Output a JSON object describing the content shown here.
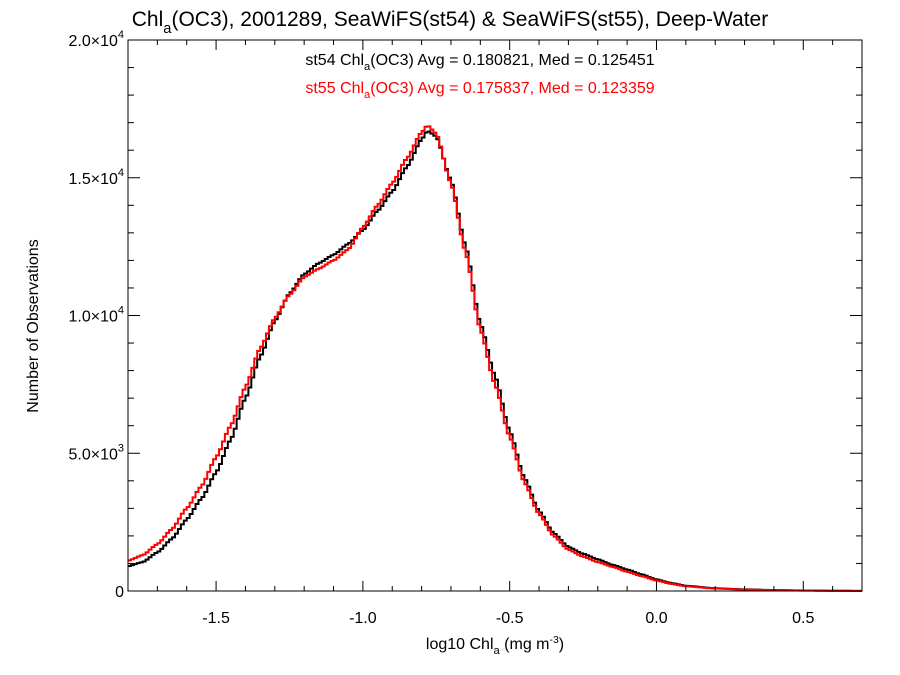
{
  "title": {
    "pre": "Chl",
    "sub": "a",
    "post": "(OC3), 2001289, SeaWiFS(st54) & SeaWiFS(st55), Deep-Water"
  },
  "annotations": [
    {
      "pre": "st54 Chl",
      "sub": "a",
      "post": "(OC3) Avg = 0.180821, Med = 0.125451",
      "color": "#000000"
    },
    {
      "pre": "st55 Chl",
      "sub": "a",
      "post": "(OC3) Avg = 0.175837, Med = 0.123359",
      "color": "#ff0000"
    }
  ],
  "xlabel": {
    "pre": "log10 Chl",
    "sub": "a",
    "mid": " (mg m",
    "sup": "-3",
    "post": ")"
  },
  "ylabel": "Number of Observations",
  "chart_data": {
    "type": "line",
    "step": true,
    "xlim": [
      -1.8,
      0.7
    ],
    "ylim": [
      0,
      20000
    ],
    "xticks": [
      {
        "value": -1.5,
        "label": "-1.5"
      },
      {
        "value": -1.0,
        "label": "-1.0"
      },
      {
        "value": -0.5,
        "label": "-0.5"
      },
      {
        "value": 0.0,
        "label": "0.0"
      },
      {
        "value": 0.5,
        "label": "0.5"
      }
    ],
    "yticks": [
      {
        "value": 0,
        "mant": "0",
        "exp": ""
      },
      {
        "value": 5000,
        "mant": "5.0×10",
        "exp": "3"
      },
      {
        "value": 10000,
        "mant": "1.0×10",
        "exp": "4"
      },
      {
        "value": 15000,
        "mant": "1.5×10",
        "exp": "4"
      },
      {
        "value": 20000,
        "mant": "2.0×10",
        "exp": "4"
      }
    ],
    "grid": false,
    "series": [
      {
        "name": "st54",
        "color": "#000000",
        "x": [
          -1.8,
          -1.75,
          -1.7,
          -1.65,
          -1.6,
          -1.55,
          -1.5,
          -1.45,
          -1.4,
          -1.35,
          -1.3,
          -1.25,
          -1.2,
          -1.15,
          -1.1,
          -1.05,
          -1.0,
          -0.95,
          -0.9,
          -0.85,
          -0.8,
          -0.78,
          -0.75,
          -0.7,
          -0.65,
          -0.6,
          -0.55,
          -0.5,
          -0.45,
          -0.4,
          -0.35,
          -0.3,
          -0.25,
          -0.2,
          -0.15,
          -0.1,
          -0.05,
          0.0,
          0.05,
          0.1,
          0.2,
          0.3,
          0.4,
          0.5,
          0.6,
          0.7
        ],
        "y": [
          900,
          1050,
          1400,
          1900,
          2600,
          3350,
          4300,
          5500,
          7000,
          8500,
          9800,
          10800,
          11500,
          11900,
          12200,
          12600,
          13100,
          13800,
          14500,
          15400,
          16400,
          16700,
          16500,
          14900,
          12500,
          9700,
          7800,
          5800,
          4100,
          2900,
          2100,
          1600,
          1350,
          1150,
          950,
          780,
          600,
          420,
          290,
          190,
          100,
          60,
          35,
          20,
          10,
          5
        ]
      },
      {
        "name": "st55",
        "color": "#ff0000",
        "x": [
          -1.8,
          -1.75,
          -1.7,
          -1.65,
          -1.6,
          -1.55,
          -1.5,
          -1.45,
          -1.4,
          -1.35,
          -1.3,
          -1.25,
          -1.2,
          -1.15,
          -1.1,
          -1.05,
          -1.0,
          -0.95,
          -0.9,
          -0.85,
          -0.8,
          -0.78,
          -0.75,
          -0.7,
          -0.65,
          -0.6,
          -0.55,
          -0.5,
          -0.45,
          -0.4,
          -0.35,
          -0.3,
          -0.25,
          -0.2,
          -0.15,
          -0.1,
          -0.05,
          0.0,
          0.05,
          0.1,
          0.2,
          0.3,
          0.4,
          0.5,
          0.6,
          0.7
        ],
        "y": [
          1100,
          1300,
          1700,
          2250,
          3000,
          3800,
          4850,
          6000,
          7400,
          8800,
          9900,
          10750,
          11400,
          11700,
          12000,
          12400,
          13200,
          14000,
          14800,
          15700,
          16650,
          16900,
          16600,
          14800,
          12300,
          9500,
          7500,
          5600,
          3950,
          2800,
          2000,
          1500,
          1250,
          1050,
          880,
          700,
          540,
          380,
          260,
          170,
          90,
          50,
          30,
          15,
          8,
          4
        ]
      }
    ]
  }
}
